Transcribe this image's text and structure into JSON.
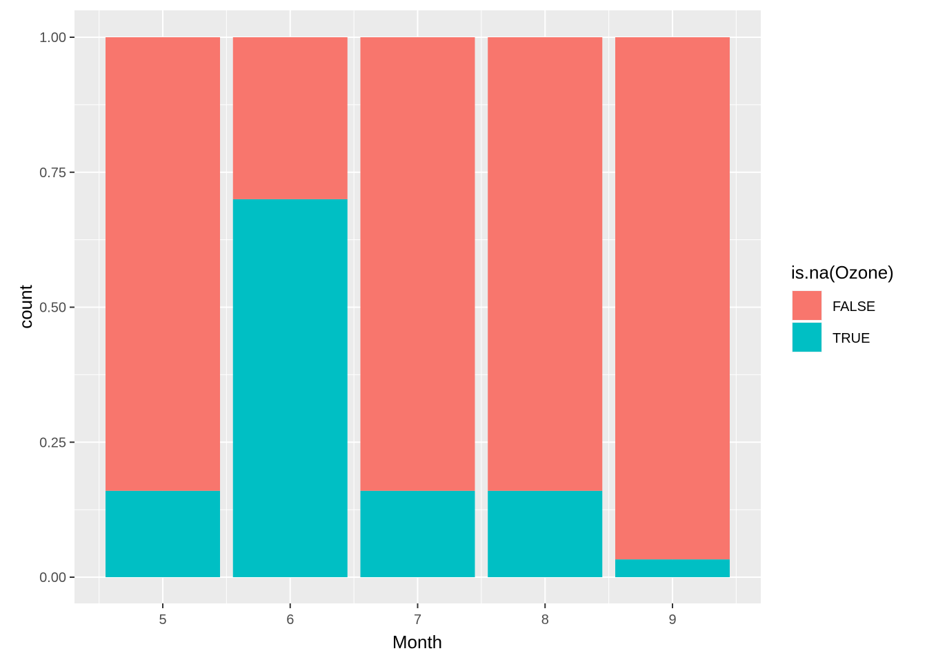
{
  "chart_data": {
    "type": "bar",
    "stacked": true,
    "position": "fill",
    "categories": [
      "5",
      "6",
      "7",
      "8",
      "9"
    ],
    "series": [
      {
        "name": "FALSE",
        "color": "#F8766D",
        "values": [
          0.84,
          0.3,
          0.84,
          0.84,
          0.967
        ]
      },
      {
        "name": "TRUE",
        "color": "#00BFC4",
        "values": [
          0.16,
          0.7,
          0.16,
          0.16,
          0.033
        ]
      }
    ],
    "xlabel": "Month",
    "ylabel": "count",
    "ylim": [
      0,
      1
    ],
    "yticks": [
      "0.00",
      "0.25",
      "0.50",
      "0.75",
      "1.00"
    ],
    "ytick_values": [
      0,
      0.25,
      0.5,
      0.75,
      1.0
    ],
    "legend": {
      "title": "is.na(Ozone)",
      "position": "right"
    },
    "grid": true,
    "panel_background": "#EBEBEB",
    "grid_color": "#FFFFFF"
  }
}
